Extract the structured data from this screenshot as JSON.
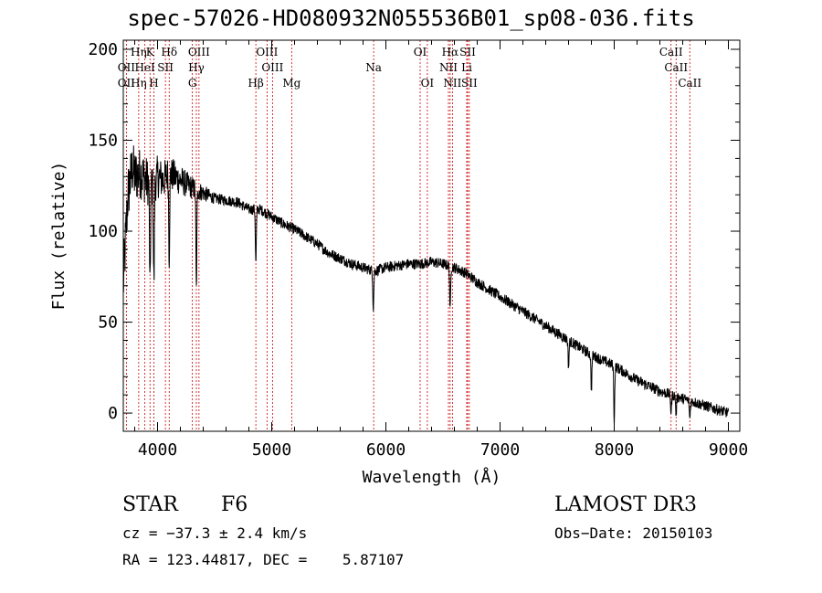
{
  "chart_data": {
    "type": "line",
    "title": "spec-57026-HD080932N055536B01_sp08-036.fits",
    "xlabel": "Wavelength (Å)",
    "ylabel": "Flux (relative)",
    "xlim": [
      3700,
      9100
    ],
    "ylim": [
      -10,
      205
    ],
    "xticks": [
      4000,
      5000,
      6000,
      7000,
      8000,
      9000
    ],
    "xtick_labels": [
      "4000",
      "5000",
      "6000",
      "7000",
      "8000",
      "9000"
    ],
    "yticks": [
      0,
      50,
      100,
      150,
      200
    ],
    "ytick_labels": [
      "0",
      "50",
      "100",
      "150",
      "200"
    ],
    "grid": false,
    "spectrum_anchor_points": {
      "x": [
        3700,
        3740,
        3780,
        3800,
        3850,
        3900,
        3950,
        4000,
        4050,
        4100,
        4200,
        4300,
        4400,
        4500,
        4600,
        4700,
        4800,
        4900,
        5000,
        5100,
        5200,
        5300,
        5400,
        5500,
        5600,
        5700,
        5800,
        5900,
        6000,
        6100,
        6200,
        6300,
        6400,
        6500,
        6600,
        6700,
        6800,
        6900,
        7000,
        7100,
        7200,
        7300,
        7400,
        7500,
        7600,
        7700,
        7800,
        7900,
        8000,
        8100,
        8200,
        8300,
        8400,
        8500,
        8600,
        8700,
        8800,
        8900,
        9000
      ],
      "y": [
        70,
        120,
        135,
        130,
        132,
        128,
        125,
        130,
        128,
        132,
        128,
        124,
        121,
        118,
        117,
        116,
        112,
        112,
        108,
        104,
        101,
        97,
        93,
        88,
        85,
        82,
        80,
        78,
        80,
        81,
        82,
        82,
        83,
        82,
        80,
        77,
        72,
        68,
        64,
        60,
        56,
        52,
        48,
        44,
        40,
        36,
        32,
        29,
        26,
        22,
        18,
        15,
        12,
        10,
        8,
        6,
        4,
        2,
        0
      ]
    },
    "absorption_dips": [
      {
        "x": 3934,
        "depth": 60
      },
      {
        "x": 3968,
        "depth": 55
      },
      {
        "x": 4102,
        "depth": 45
      },
      {
        "x": 4340,
        "depth": 55
      },
      {
        "x": 4861,
        "depth": 30
      },
      {
        "x": 5890,
        "depth": 20
      },
      {
        "x": 6563,
        "depth": 25
      },
      {
        "x": 7600,
        "depth": 15
      },
      {
        "x": 7800,
        "depth": 20
      },
      {
        "x": 8000,
        "depth": 30
      },
      {
        "x": 8498,
        "depth": 10
      },
      {
        "x": 8542,
        "depth": 10
      },
      {
        "x": 8662,
        "depth": 10
      }
    ],
    "emission_lines": [
      {
        "label": "Hη",
        "x": 3835,
        "row": 0
      },
      {
        "label": "K",
        "x": 3934,
        "row": 0
      },
      {
        "label": "Hδ",
        "x": 4102,
        "row": 0
      },
      {
        "label": "OIII",
        "x": 4363,
        "row": 0
      },
      {
        "label": "OIII",
        "x": 4959,
        "row": 0
      },
      {
        "label": "OI",
        "x": 6300,
        "row": 0
      },
      {
        "label": "Hα",
        "x": 6563,
        "row": 0
      },
      {
        "label": "SII",
        "x": 6716,
        "row": 0
      },
      {
        "label": "CaII",
        "x": 8498,
        "row": 0
      },
      {
        "label": "OII",
        "x": 3727,
        "row": 1
      },
      {
        "label": "HeI",
        "x": 3889,
        "row": 1
      },
      {
        "label": "SII",
        "x": 4069,
        "row": 1
      },
      {
        "label": "Hγ",
        "x": 4340,
        "row": 1
      },
      {
        "label": "OIII",
        "x": 5007,
        "row": 1
      },
      {
        "label": "Na",
        "x": 5893,
        "row": 1
      },
      {
        "label": "NII",
        "x": 6548,
        "row": 1
      },
      {
        "label": "Li",
        "x": 6708,
        "row": 1
      },
      {
        "label": "CaII",
        "x": 8542,
        "row": 1
      },
      {
        "label": "OII",
        "x": 3727,
        "row": 2
      },
      {
        "label": "Hη",
        "x": 3835,
        "row": 2
      },
      {
        "label": "H",
        "x": 3968,
        "row": 2
      },
      {
        "label": "G",
        "x": 4305,
        "row": 2
      },
      {
        "label": "Hβ",
        "x": 4861,
        "row": 2
      },
      {
        "label": "Mg",
        "x": 5175,
        "row": 2
      },
      {
        "label": "OI",
        "x": 6363,
        "row": 2
      },
      {
        "label": "NII",
        "x": 6583,
        "row": 2
      },
      {
        "label": "SII",
        "x": 6731,
        "row": 2
      },
      {
        "label": "CaII",
        "x": 8662,
        "row": 2
      }
    ],
    "info": {
      "object_class": "STAR",
      "subclass": "F6",
      "survey": "LAMOST DR3",
      "cz": "cz = −37.3 ± 2.4 km/s",
      "obs_date": "Obs−Date: 20150103",
      "coords": "RA = 123.44817, DEC =    5.87107"
    }
  }
}
